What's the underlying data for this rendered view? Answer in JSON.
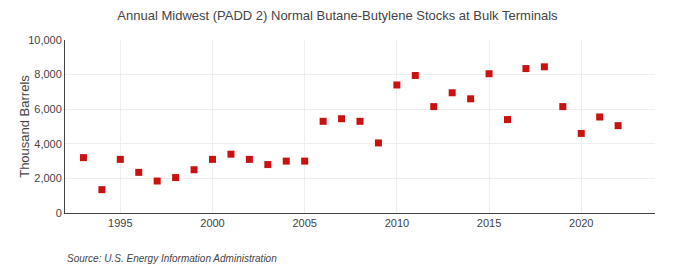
{
  "chart_data": {
    "type": "scatter",
    "title": "Annual Midwest (PADD 2) Normal Butane-Butylene Stocks at Bulk Terminals",
    "ylabel": "Thousand Barrels",
    "source": "Source: U.S. Energy Information Administration",
    "color": "#cc1111",
    "marker": "square",
    "x": [
      1993,
      1994,
      1995,
      1996,
      1997,
      1998,
      1999,
      2000,
      2001,
      2002,
      2003,
      2004,
      2005,
      2006,
      2007,
      2008,
      2009,
      2010,
      2011,
      2012,
      2013,
      2014,
      2015,
      2016,
      2017,
      2018,
      2019,
      2020,
      2021,
      2022
    ],
    "values": [
      3200,
      1350,
      3100,
      2350,
      1850,
      2050,
      2500,
      3100,
      3400,
      3100,
      2800,
      3000,
      3000,
      5300,
      5450,
      5300,
      4050,
      7400,
      7950,
      6150,
      6950,
      6600,
      8050,
      5400,
      8350,
      8450,
      6150,
      4600,
      5550,
      5050
    ],
    "xlim": [
      1992,
      2024
    ],
    "ylim": [
      0,
      10000
    ],
    "xticks": [
      1995,
      2000,
      2005,
      2010,
      2015,
      2020
    ],
    "yticks": [
      0,
      {
        "value": 2000,
        "label": "2,000"
      },
      {
        "value": 4000,
        "label": "4,000"
      },
      {
        "value": 6000,
        "label": "6,000"
      },
      {
        "value": 8000,
        "label": "8,000"
      },
      {
        "value": 10000,
        "label": "10,000"
      }
    ],
    "grid": true
  }
}
